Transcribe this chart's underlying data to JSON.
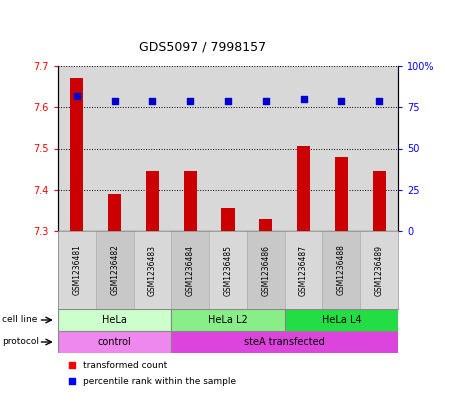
{
  "title": "GDS5097 / 7998157",
  "samples": [
    "GSM1236481",
    "GSM1236482",
    "GSM1236483",
    "GSM1236484",
    "GSM1236485",
    "GSM1236486",
    "GSM1236487",
    "GSM1236488",
    "GSM1236489"
  ],
  "transformed_count": [
    7.67,
    7.39,
    7.445,
    7.445,
    7.355,
    7.33,
    7.505,
    7.48,
    7.445
  ],
  "percentile_rank": [
    82,
    79,
    79,
    79,
    79,
    79,
    80,
    79,
    79
  ],
  "ylim_left": [
    7.3,
    7.7
  ],
  "ylim_right": [
    0,
    100
  ],
  "yticks_left": [
    7.3,
    7.4,
    7.5,
    7.6,
    7.7
  ],
  "yticks_right": [
    0,
    25,
    50,
    75,
    100
  ],
  "ytick_labels_right": [
    "0",
    "25",
    "50",
    "75",
    "100%"
  ],
  "bar_color": "#cc0000",
  "dot_color": "#0000cc",
  "bar_bottom": 7.3,
  "cell_line_groups": [
    {
      "label": "HeLa",
      "start": 0,
      "end": 3,
      "color": "#ccffcc"
    },
    {
      "label": "HeLa L2",
      "start": 3,
      "end": 6,
      "color": "#88ee88"
    },
    {
      "label": "HeLa L4",
      "start": 6,
      "end": 9,
      "color": "#22dd44"
    }
  ],
  "protocol_groups": [
    {
      "label": "control",
      "start": 0,
      "end": 3,
      "color": "#ee88ee"
    },
    {
      "label": "steA transfected",
      "start": 3,
      "end": 9,
      "color": "#dd44dd"
    }
  ],
  "legend_red_label": "transformed count",
  "legend_blue_label": "percentile rank within the sample",
  "plot_bg_color": "#d8d8d8",
  "sample_bg_color": "#d0d0d0"
}
